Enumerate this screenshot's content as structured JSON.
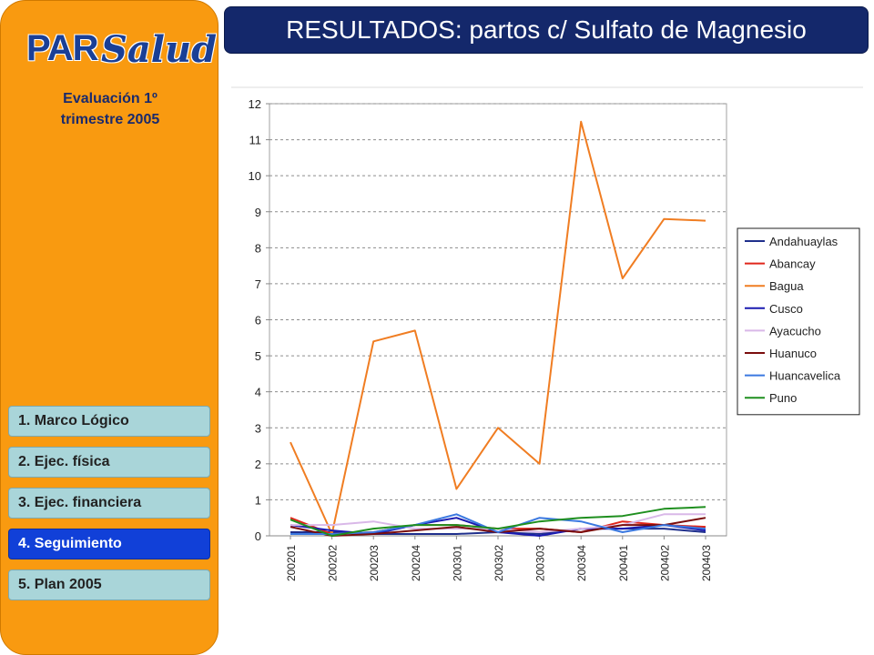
{
  "logo": {
    "par": "PAR",
    "salud": "Salud"
  },
  "sidebar": {
    "subtitle_line1": "Evaluación 1º",
    "subtitle_line2": "trimestre 2005",
    "items": [
      {
        "label": "1. Marco Lógico"
      },
      {
        "label": "2. Ejec. física"
      },
      {
        "label": "3. Ejec. financiera"
      },
      {
        "label": "4. Seguimiento",
        "active": true
      },
      {
        "label": "5. Plan 2005"
      }
    ]
  },
  "header": {
    "title": "RESULTADOS: partos c/ Sulfato de Magnesio"
  },
  "colors": {
    "sidebar": "#f99a10",
    "nav_button": "#a9d5d9",
    "nav_active": "#1140d8",
    "title_bar": "#14286b"
  },
  "chart_data": {
    "type": "line",
    "categories": [
      "200201",
      "200202",
      "200203",
      "200204",
      "200301",
      "200302",
      "200303",
      "200304",
      "200401",
      "200402",
      "200403"
    ],
    "ylim": [
      0,
      12
    ],
    "yticks": [
      "0",
      "1",
      "2",
      "3",
      "4",
      "5",
      "6",
      "7",
      "8",
      "9",
      "10",
      "11",
      "12"
    ],
    "grid": true,
    "legend_position": "right",
    "series": [
      {
        "name": "Andahuaylas",
        "color": "#1f2f8c",
        "values": [
          0.1,
          0.1,
          0.05,
          0.05,
          0.05,
          0.1,
          0.05,
          0.2,
          0.2,
          0.2,
          0.1
        ]
      },
      {
        "name": "Abancay",
        "color": "#e0261b",
        "values": [
          0.5,
          0.05,
          0.1,
          0.3,
          0.3,
          0.2,
          0.2,
          0.1,
          0.4,
          0.3,
          0.25
        ]
      },
      {
        "name": "Bagua",
        "color": "#f07d22",
        "values": [
          2.6,
          0.05,
          5.4,
          5.7,
          1.3,
          3.0,
          2.0,
          11.5,
          7.15,
          8.8,
          8.75
        ]
      },
      {
        "name": "Cusco",
        "color": "#1a1ab0",
        "values": [
          0.3,
          0.15,
          0.05,
          0.3,
          0.5,
          0.1,
          0.0,
          0.2,
          0.2,
          0.3,
          0.15
        ]
      },
      {
        "name": "Ayacucho",
        "color": "#d9b8e8",
        "values": [
          0.3,
          0.3,
          0.4,
          0.2,
          0.2,
          0.2,
          0.1,
          0.2,
          0.3,
          0.6,
          0.6
        ]
      },
      {
        "name": "Huanuco",
        "color": "#7a0d0d",
        "values": [
          0.25,
          0.0,
          0.05,
          0.15,
          0.25,
          0.1,
          0.2,
          0.1,
          0.3,
          0.3,
          0.5
        ]
      },
      {
        "name": "Huancavelica",
        "color": "#3a78e0",
        "values": [
          0.05,
          0.05,
          0.1,
          0.3,
          0.6,
          0.1,
          0.5,
          0.4,
          0.1,
          0.3,
          0.2
        ]
      },
      {
        "name": "Puno",
        "color": "#1f8f1f",
        "values": [
          0.45,
          0.0,
          0.2,
          0.3,
          0.3,
          0.2,
          0.4,
          0.5,
          0.55,
          0.75,
          0.8
        ]
      }
    ]
  }
}
